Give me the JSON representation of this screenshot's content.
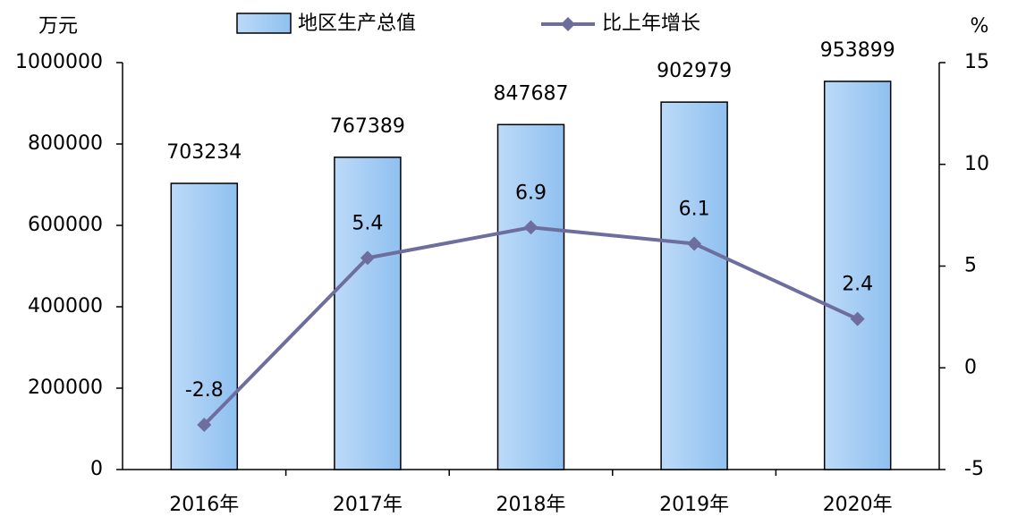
{
  "chart_data": {
    "type": "bar",
    "y_label": "万元",
    "y2_label": "%",
    "categories": [
      "2016年",
      "2017年",
      "2018年",
      "2019年",
      "2020年"
    ],
    "series": [
      {
        "name": "地区生产总值",
        "type": "bar",
        "color": "#9cc8f2",
        "values": [
          703234,
          767389,
          847687,
          902979,
          953899
        ]
      },
      {
        "name": "比上年增长",
        "type": "line",
        "axis": "y2",
        "color": "#6e6e9e",
        "values": [
          -2.8,
          5.4,
          6.9,
          6.1,
          2.4
        ]
      }
    ],
    "ylim": [
      0,
      1000000
    ],
    "yticks": [
      0,
      200000,
      400000,
      600000,
      800000,
      1000000
    ],
    "y2lim": [
      -5,
      15
    ],
    "y2ticks": [
      -5,
      0,
      5,
      10,
      15
    ]
  }
}
